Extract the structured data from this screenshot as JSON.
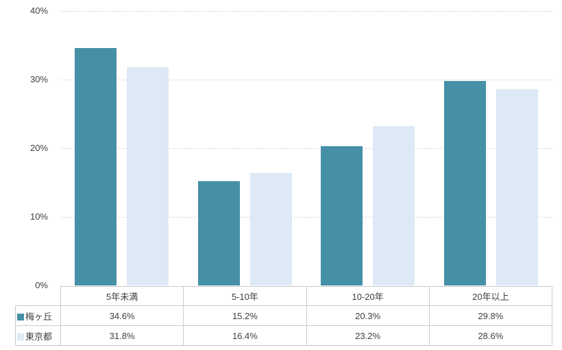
{
  "chart_data": {
    "type": "bar",
    "categories": [
      "5年未満",
      "5-10年",
      "10-20年",
      "20年以上"
    ],
    "series": [
      {
        "name": "梅ヶ丘",
        "color": "#4590a7",
        "values": [
          34.6,
          15.2,
          20.3,
          29.8
        ]
      },
      {
        "name": "東京都",
        "color": "#dde9f5",
        "values": [
          31.8,
          16.4,
          23.2,
          28.6
        ]
      }
    ],
    "title": "",
    "xlabel": "",
    "ylabel": "",
    "ylim": [
      0,
      40
    ],
    "yticks": [
      "0%",
      "10%",
      "20%",
      "30%",
      "40%"
    ],
    "grid": true,
    "gridline_color": "#d8d8d8",
    "legend_position": "table-left"
  },
  "table": {
    "columns": [
      "5年未満",
      "5-10年",
      "10-20年",
      "20年以上"
    ],
    "row_labels": [
      "梅ヶ丘",
      "東京都"
    ],
    "rows": [
      [
        "34.6%",
        "15.2%",
        "20.3%",
        "29.8%"
      ],
      [
        "31.8%",
        "16.4%",
        "23.2%",
        "28.6%"
      ]
    ]
  },
  "colors": {
    "series_1": "#4590a7",
    "series_2": "#dde9f5",
    "gridline": "#d8d8d8",
    "table_border": "#c9c9c9",
    "text": "#3f3f3f",
    "background": "#ffffff"
  }
}
